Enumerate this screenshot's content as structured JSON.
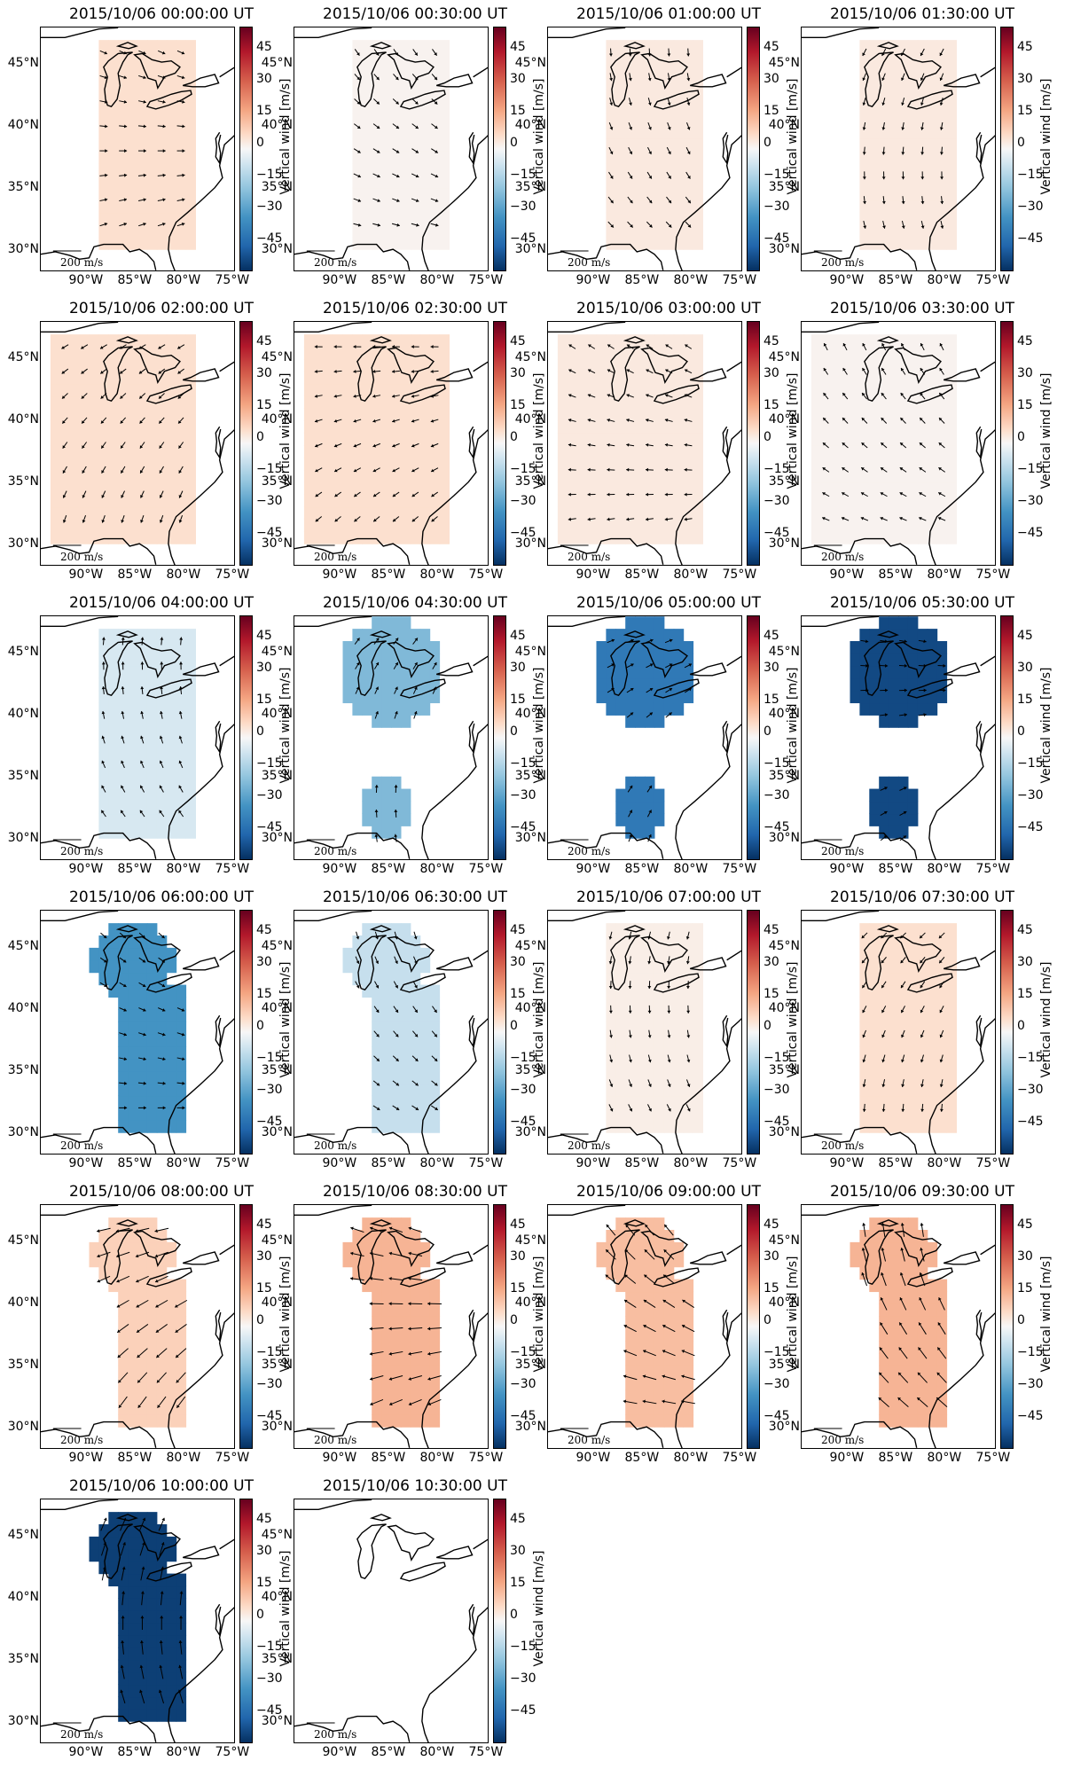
{
  "figure": {
    "panels": [
      {
        "title": "2015/10/06 00:00:00 UT",
        "value": 5
      },
      {
        "title": "2015/10/06 00:30:00 UT",
        "value": 1
      },
      {
        "title": "2015/10/06 01:00:00 UT",
        "value": 3
      },
      {
        "title": "2015/10/06 01:30:00 UT",
        "value": 3
      },
      {
        "title": "2015/10/06 02:00:00 UT",
        "value": 5
      },
      {
        "title": "2015/10/06 02:30:00 UT",
        "value": 5
      },
      {
        "title": "2015/10/06 03:00:00 UT",
        "value": 3
      },
      {
        "title": "2015/10/06 03:30:00 UT",
        "value": 1
      },
      {
        "title": "2015/10/06 04:00:00 UT",
        "value": -5
      },
      {
        "title": "2015/10/06 04:30:00 UT",
        "value": -20
      },
      {
        "title": "2015/10/06 05:00:00 UT",
        "value": -38
      },
      {
        "title": "2015/10/06 05:30:00 UT",
        "value": -50
      },
      {
        "title": "2015/10/06 06:00:00 UT",
        "value": -30
      },
      {
        "title": "2015/10/06 06:30:00 UT",
        "value": -8
      },
      {
        "title": "2015/10/06 07:00:00 UT",
        "value": 2
      },
      {
        "title": "2015/10/06 07:30:00 UT",
        "value": 5
      },
      {
        "title": "2015/10/06 08:00:00 UT",
        "value": 8
      },
      {
        "title": "2015/10/06 08:30:00 UT",
        "value": 14
      },
      {
        "title": "2015/10/06 09:00:00 UT",
        "value": 12
      },
      {
        "title": "2015/10/06 09:30:00 UT",
        "value": 14
      },
      {
        "title": "2015/10/06 10:00:00 UT",
        "value": -52
      },
      {
        "title": "2015/10/06 10:30:00 UT",
        "value": null
      }
    ],
    "lat_ticks": [
      "45°N",
      "40°N",
      "35°N",
      "30°N"
    ],
    "lon_ticks": [
      "90°W",
      "85°W",
      "80°W",
      "75°W"
    ],
    "colorbar_ticks": [
      "45",
      "30",
      "15",
      "0",
      "−15",
      "−30",
      "−45"
    ],
    "colorbar_label": "Vertical wind [m/s]",
    "scale_label": "200 m/s"
  },
  "chart_data": {
    "type": "heatmap",
    "colorbar_range": [
      -55,
      55
    ],
    "colormap": "RdBu_r",
    "colors": {
      "positive_max": "#67001f",
      "zero": "#f7f7f7",
      "negative_max": "#053061"
    }
  }
}
